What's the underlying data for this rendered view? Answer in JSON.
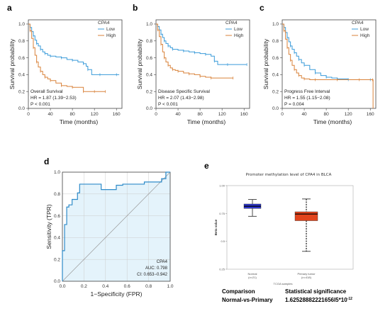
{
  "chart_data": [
    {
      "panel": "a",
      "type": "line",
      "title": "",
      "xlabel": "Time (months)",
      "ylabel": "Survival probability",
      "xlim": [
        0,
        170
      ],
      "ylim": [
        0,
        1.05
      ],
      "xticks": [
        "0",
        "40",
        "80",
        "120",
        "160"
      ],
      "yticks": [
        "0.0",
        "0.2",
        "0.4",
        "0.6",
        "0.8",
        "1.0"
      ],
      "legend": {
        "title": "CPA4",
        "position": "top-right"
      },
      "series": [
        {
          "name": "Low",
          "color": "#3a9bd9",
          "x": [
            0,
            3,
            6,
            9,
            12,
            15,
            18,
            22,
            26,
            30,
            35,
            40,
            50,
            60,
            70,
            80,
            90,
            100,
            105,
            108,
            115,
            130,
            145,
            160,
            165
          ],
          "y": [
            1.0,
            0.96,
            0.91,
            0.86,
            0.81,
            0.77,
            0.74,
            0.7,
            0.67,
            0.65,
            0.63,
            0.62,
            0.61,
            0.6,
            0.58,
            0.57,
            0.55,
            0.53,
            0.5,
            0.46,
            0.4,
            0.4,
            0.4,
            0.4,
            0.4
          ]
        },
        {
          "name": "High",
          "color": "#d9823a",
          "x": [
            0,
            3,
            6,
            9,
            12,
            15,
            18,
            22,
            26,
            30,
            35,
            40,
            50,
            60,
            70,
            80,
            90,
            100,
            110,
            120,
            130,
            140
          ],
          "y": [
            1.0,
            0.92,
            0.83,
            0.72,
            0.63,
            0.55,
            0.49,
            0.44,
            0.4,
            0.37,
            0.35,
            0.33,
            0.3,
            0.27,
            0.26,
            0.25,
            0.25,
            0.2,
            0.2,
            0.2,
            0.2,
            0.2
          ]
        }
      ],
      "annotations": [
        "Overall Survival",
        "HR = 1.87 (1.39−2.53)",
        "P < 0.001"
      ]
    },
    {
      "panel": "b",
      "type": "line",
      "title": "",
      "xlabel": "Time (months)",
      "ylabel": "Survival probability",
      "xlim": [
        0,
        170
      ],
      "ylim": [
        0,
        1.05
      ],
      "xticks": [
        "0",
        "40",
        "80",
        "120",
        "160"
      ],
      "yticks": [
        "0.0",
        "0.2",
        "0.4",
        "0.6",
        "0.8",
        "1.0"
      ],
      "legend": {
        "title": "CPA4",
        "position": "top-right"
      },
      "series": [
        {
          "name": "Low",
          "color": "#3a9bd9",
          "x": [
            0,
            3,
            6,
            9,
            12,
            15,
            18,
            22,
            26,
            30,
            40,
            50,
            60,
            70,
            80,
            90,
            100,
            106,
            112,
            130,
            150,
            165
          ],
          "y": [
            1.0,
            0.97,
            0.93,
            0.88,
            0.84,
            0.8,
            0.77,
            0.74,
            0.72,
            0.7,
            0.69,
            0.68,
            0.67,
            0.66,
            0.65,
            0.64,
            0.62,
            0.56,
            0.52,
            0.52,
            0.52,
            0.52
          ]
        },
        {
          "name": "High",
          "color": "#d9823a",
          "x": [
            0,
            3,
            6,
            9,
            12,
            15,
            18,
            22,
            26,
            30,
            35,
            40,
            50,
            60,
            70,
            80,
            90,
            100,
            120,
            140
          ],
          "y": [
            1.0,
            0.93,
            0.85,
            0.76,
            0.67,
            0.6,
            0.55,
            0.51,
            0.48,
            0.46,
            0.45,
            0.44,
            0.42,
            0.41,
            0.4,
            0.38,
            0.37,
            0.36,
            0.36,
            0.36
          ]
        }
      ],
      "annotations": [
        "Disease Specific Survival",
        "HR = 2.07 (1.43−2.98)",
        "P < 0.001"
      ]
    },
    {
      "panel": "c",
      "type": "line",
      "title": "",
      "xlabel": "Time (months)",
      "ylabel": "Survival probability",
      "xlim": [
        0,
        170
      ],
      "ylim": [
        0,
        1.05
      ],
      "xticks": [
        "0",
        "40",
        "80",
        "120",
        "160"
      ],
      "yticks": [
        "0.0",
        "0.2",
        "0.4",
        "0.6",
        "0.8",
        "1.0"
      ],
      "legend": {
        "title": "CPA4",
        "position": "top-right"
      },
      "series": [
        {
          "name": "Low",
          "color": "#3a9bd9",
          "x": [
            0,
            3,
            6,
            9,
            12,
            15,
            18,
            22,
            26,
            30,
            35,
            40,
            50,
            60,
            70,
            80,
            90,
            100,
            110,
            120,
            140,
            160
          ],
          "y": [
            1.0,
            0.96,
            0.9,
            0.84,
            0.79,
            0.74,
            0.7,
            0.66,
            0.62,
            0.58,
            0.54,
            0.51,
            0.46,
            0.42,
            0.39,
            0.37,
            0.36,
            0.35,
            0.35,
            0.34,
            0.34,
            0.34
          ]
        },
        {
          "name": "High",
          "color": "#d9823a",
          "x": [
            0,
            3,
            6,
            9,
            12,
            15,
            18,
            22,
            26,
            30,
            35,
            40,
            50,
            60,
            80,
            100,
            120,
            140,
            160,
            164,
            165
          ],
          "y": [
            1.0,
            0.92,
            0.82,
            0.72,
            0.64,
            0.57,
            0.51,
            0.46,
            0.42,
            0.39,
            0.36,
            0.35,
            0.34,
            0.34,
            0.34,
            0.34,
            0.34,
            0.34,
            0.34,
            0.34,
            0.0
          ]
        }
      ],
      "annotations": [
        "Progress Free Interval",
        "HR = 1.55 (1.15−2.08)",
        "P = 0.004"
      ]
    },
    {
      "panel": "d",
      "type": "line",
      "title": "",
      "xlabel": "1−Specificity (FPR)",
      "ylabel": "Sensitivity (TPR)",
      "xlim": [
        0,
        1
      ],
      "ylim": [
        0,
        1
      ],
      "xticks": [
        "0.0",
        "0.2",
        "0.4",
        "0.6",
        "0.8",
        "1.0"
      ],
      "yticks": [
        "0.0",
        "0.2",
        "0.4",
        "0.6",
        "0.8",
        "1.0"
      ],
      "grid": true,
      "series": [
        {
          "name": "CPA4",
          "color": "#2e8bc9",
          "x": [
            0,
            0,
            0.02,
            0.02,
            0.04,
            0.04,
            0.06,
            0.06,
            0.09,
            0.09,
            0.14,
            0.14,
            0.16,
            0.16,
            0.36,
            0.36,
            0.5,
            0.5,
            0.56,
            0.56,
            0.76,
            0.76,
            0.92,
            0.92,
            0.96,
            0.96,
            1.0
          ],
          "y": [
            0,
            0.28,
            0.28,
            0.52,
            0.52,
            0.68,
            0.68,
            0.7,
            0.7,
            0.75,
            0.75,
            0.81,
            0.81,
            0.89,
            0.89,
            0.84,
            0.84,
            0.88,
            0.88,
            0.89,
            0.89,
            0.91,
            0.91,
            0.94,
            0.94,
            1.0,
            1.0
          ]
        }
      ],
      "annotations": [
        "CPA4",
        "AUC: 0.798",
        "CI: 0.653−0.942"
      ]
    },
    {
      "panel": "e",
      "type": "box",
      "title": "Promoter methylation level of CPA4 in BLCA",
      "xlabel": "TCGA samples",
      "ylabel": "Beta value",
      "ylim": [
        0.25,
        1.0
      ],
      "yticks": [
        "0.25",
        "0.5",
        "0.75",
        "1.00"
      ],
      "categories": [
        "Normal",
        "Primary tumor"
      ],
      "counts": [
        "(n=21)",
        "(n=418)"
      ],
      "boxes": [
        {
          "name": "Normal",
          "color": "#2b35c9",
          "min": 0.725,
          "q1": 0.795,
          "median": 0.815,
          "q3": 0.835,
          "max": 0.875
        },
        {
          "name": "Primary tumor",
          "color": "#e2441c",
          "min": 0.41,
          "q1": 0.685,
          "median": 0.745,
          "q3": 0.765,
          "max": 0.88
        }
      ]
    }
  ],
  "comparison_table": {
    "header": [
      "Comparison",
      "Statistical significance"
    ],
    "rows": [
      [
        "Normal-vs-Primary",
        "1.62528882221656l5*10",
        "-12"
      ]
    ]
  }
}
